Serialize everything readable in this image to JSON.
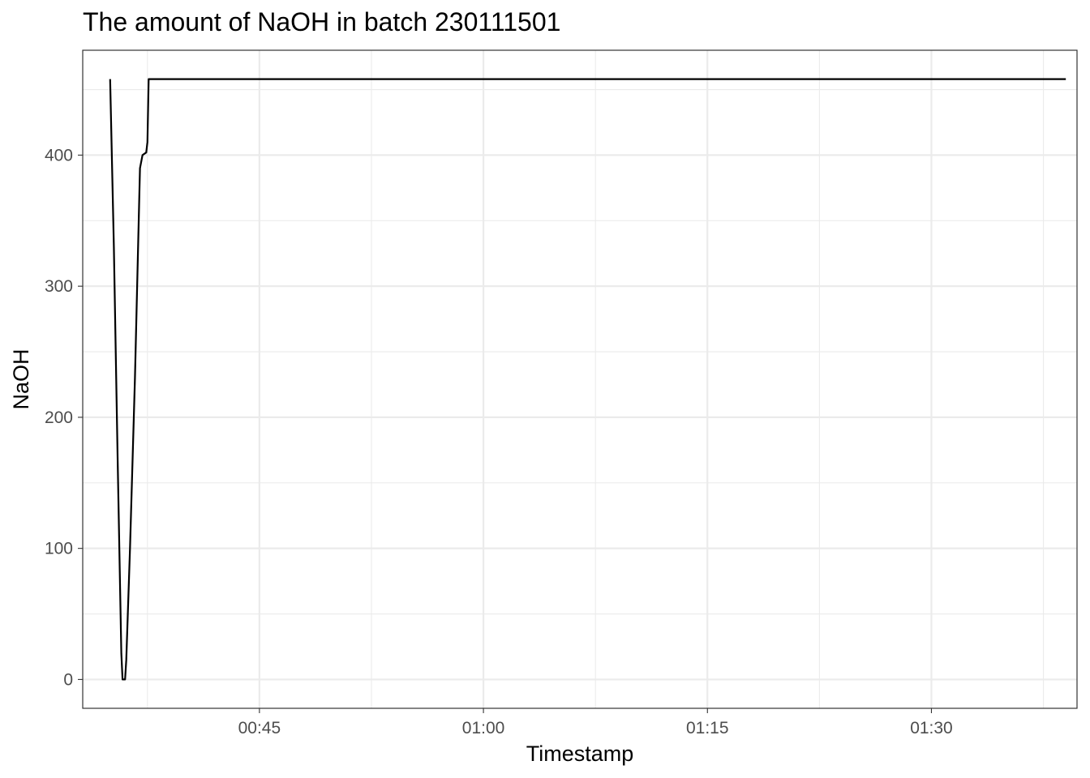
{
  "chart_data": {
    "type": "line",
    "title": "The amount of NaOH in batch 230111501",
    "xlabel": "Timestamp",
    "ylabel": "NaOH",
    "x_unit": "time of day (HH:MM:SS)",
    "xlim": [
      "00:33:10",
      "01:39:45"
    ],
    "ylim": [
      -22,
      480
    ],
    "x_ticks": [
      "00:45",
      "01:00",
      "01:15",
      "01:30"
    ],
    "y_ticks": [
      0,
      100,
      200,
      300,
      400
    ],
    "grid": true,
    "legend": "none",
    "series": [
      {
        "color": "#000000",
        "points": [
          {
            "x": "00:35:00",
            "y": 458
          },
          {
            "x": "00:35:15",
            "y": 330
          },
          {
            "x": "00:35:30",
            "y": 170
          },
          {
            "x": "00:35:45",
            "y": 20
          },
          {
            "x": "00:35:50",
            "y": 0
          },
          {
            "x": "00:36:00",
            "y": 0
          },
          {
            "x": "00:36:05",
            "y": 15
          },
          {
            "x": "00:36:20",
            "y": 100
          },
          {
            "x": "00:36:40",
            "y": 230
          },
          {
            "x": "00:37:00",
            "y": 390
          },
          {
            "x": "00:37:10",
            "y": 400
          },
          {
            "x": "00:37:25",
            "y": 402
          },
          {
            "x": "00:37:30",
            "y": 410
          },
          {
            "x": "00:37:35",
            "y": 458
          },
          {
            "x": "01:39:00",
            "y": 458
          }
        ]
      }
    ]
  }
}
